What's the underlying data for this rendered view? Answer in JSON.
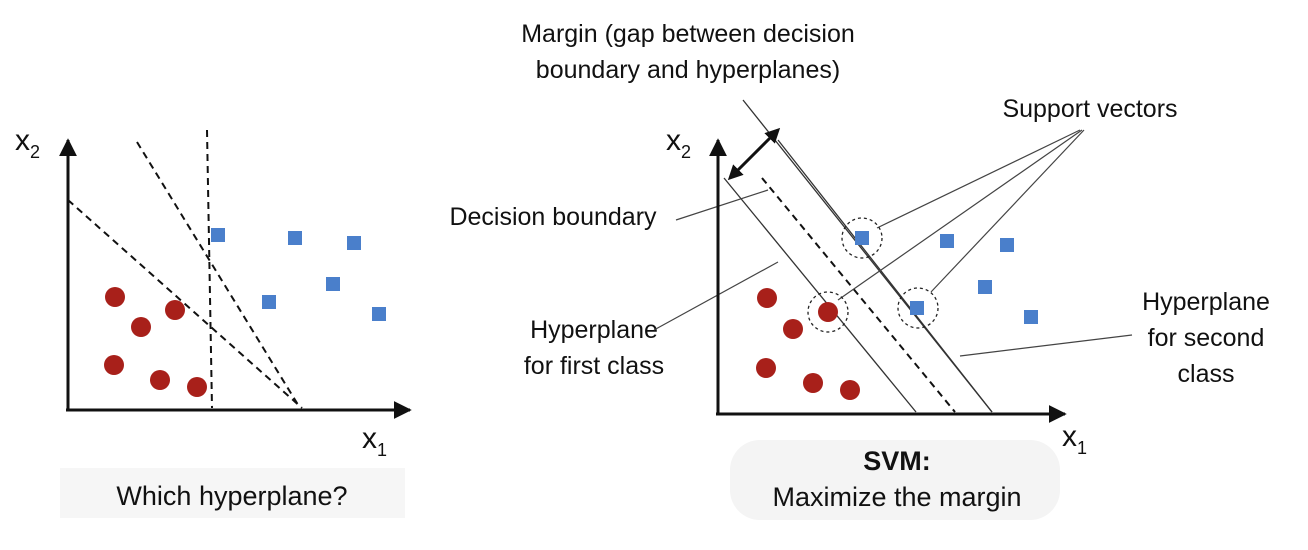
{
  "colors": {
    "circle": "#a8201a",
    "square": "#4a7fcb"
  },
  "left_panel": {
    "axis_x": {
      "base": "x",
      "sub": "1"
    },
    "axis_y": {
      "base": "x",
      "sub": "2"
    },
    "caption": "Which hyperplane?"
  },
  "right_panel": {
    "axis_x": {
      "base": "x",
      "sub": "1"
    },
    "axis_y": {
      "base": "x",
      "sub": "2"
    },
    "margin_label": {
      "line1": "Margin (gap between decision",
      "line2": "boundary and hyperplanes)"
    },
    "support_vectors_label": "Support vectors",
    "decision_boundary_label": "Decision boundary",
    "hyperplane_first": {
      "line1": "Hyperplane",
      "line2": "for first class"
    },
    "hyperplane_second": {
      "line1": "Hyperplane",
      "line2": "for second",
      "line3": "class"
    },
    "caption_bold": "SVM:",
    "caption": "Maximize the margin"
  }
}
